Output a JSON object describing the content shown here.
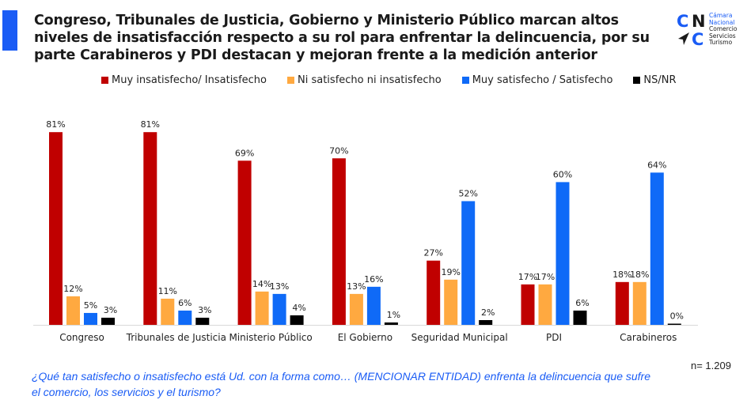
{
  "header": {
    "title": "Congreso, Tribunales de Justicia, Gobierno y Ministerio Público marcan altos niveles de insatisfacción respecto a su rol para enfrentar la delincuencia, por su parte Carabineros y PDI destacan y mejoran frente a la medición anterior"
  },
  "logo": {
    "letters": [
      "C",
      "N",
      "C"
    ],
    "icon": "arrow-pointer-icon",
    "lines": [
      "Cámara",
      "Nacional",
      "Comercio",
      "Servicios",
      "Turismo"
    ]
  },
  "colors": {
    "insatisfecho": "#c00000",
    "neutral": "#ffa940",
    "satisfecho": "#0f6af7",
    "nsnr": "#000000",
    "accent": "#1a5cf5",
    "footnote": "#1a5cf5"
  },
  "chart_data": {
    "type": "bar",
    "title": "Congreso, Tribunales de Justicia, Gobierno y Ministerio Público marcan altos niveles de insatisfacción respecto a su rol para enfrentar la delincuencia, por su parte Carabineros y PDI destacan y mejoran frente a la medición anterior",
    "xlabel": "",
    "ylabel": "",
    "ylim": [
      0,
      100
    ],
    "grid": false,
    "legend_position": "top",
    "categories": [
      "Congreso",
      "Tribunales de Justicia",
      "Ministerio Público",
      "El Gobierno",
      "Seguridad Municipal",
      "PDI",
      "Carabineros"
    ],
    "series": [
      {
        "name": "Muy insatisfecho/ Insatisfecho",
        "color": "#c00000",
        "values": [
          81,
          81,
          69,
          70,
          27,
          17,
          18
        ]
      },
      {
        "name": "Ni satisfecho ni insatisfecho",
        "color": "#ffa940",
        "values": [
          12,
          11,
          14,
          13,
          19,
          17,
          18
        ]
      },
      {
        "name": "Muy satisfecho / Satisfecho",
        "color": "#0f6af7",
        "values": [
          5,
          6,
          13,
          16,
          52,
          60,
          64
        ]
      },
      {
        "name": "NS/NR",
        "color": "#000000",
        "values": [
          3,
          3,
          4,
          1,
          2,
          6,
          0
        ]
      }
    ],
    "value_suffix": "%"
  },
  "footer": {
    "question": "¿Qué tan satisfecho o insatisfecho está Ud. con la forma como… (MENCIONAR ENTIDAD) enfrenta la delincuencia que sufre el comercio, los servicios  y el turismo?",
    "sample": "n= 1.209"
  }
}
